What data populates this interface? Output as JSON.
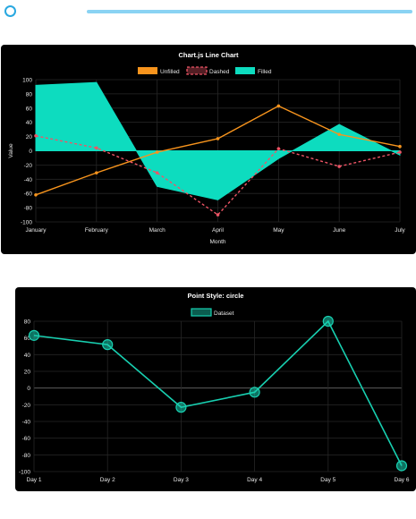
{
  "chart_data": [
    {
      "type": "line",
      "title": "Chart.js Line Chart",
      "xlabel": "Month",
      "ylabel": "Value",
      "ylim": [
        -100,
        100
      ],
      "yticks": [
        100,
        80,
        60,
        40,
        20,
        0,
        -20,
        -40,
        -60,
        -80,
        -100
      ],
      "grid": true,
      "legend_position": "top",
      "categories": [
        "January",
        "February",
        "March",
        "April",
        "May",
        "June",
        "July"
      ],
      "series": [
        {
          "name": "Unfilled",
          "style": "solid",
          "color": "#f7941d",
          "values": [
            -62,
            -31,
            -2,
            17,
            63,
            23,
            6
          ]
        },
        {
          "name": "Dashed",
          "style": "dashed",
          "color": "#ee5566",
          "values": [
            21,
            4,
            -31,
            -90,
            3,
            -22,
            -2
          ]
        },
        {
          "name": "Filled",
          "style": "filled",
          "color": "#0ddcbf",
          "values": [
            92,
            96,
            -50,
            -69,
            -11,
            37,
            -6
          ]
        }
      ]
    },
    {
      "type": "line",
      "title": "Point Style: circle",
      "xlabel": "",
      "ylabel": "",
      "ylim": [
        -100,
        80
      ],
      "yticks": [
        80,
        60,
        40,
        20,
        0,
        -20,
        -40,
        -60,
        -80,
        -100
      ],
      "grid": true,
      "legend_position": "top",
      "categories": [
        "Day 1",
        "Day 2",
        "Day 3",
        "Day 4",
        "Day 5",
        "Day 6"
      ],
      "series": [
        {
          "name": "Dataset",
          "style": "point-circle",
          "color": "#18cfb0",
          "values": [
            63,
            52,
            -23,
            -5,
            80,
            -93
          ]
        }
      ]
    }
  ]
}
